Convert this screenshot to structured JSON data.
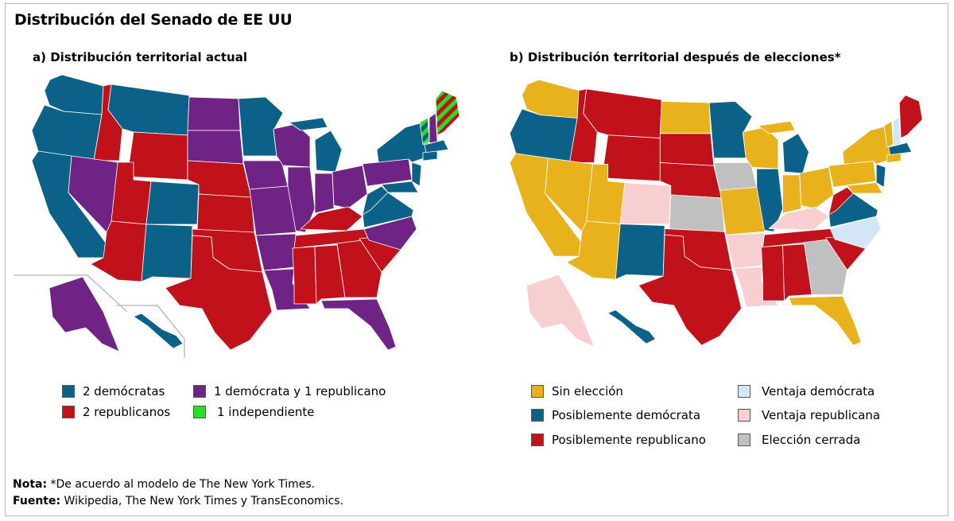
{
  "title": "Distribución del Senado de EE UU",
  "map_a": {
    "subtitle": "a) Distribución territorial actual",
    "legend": [
      {
        "label": "2 demócratas",
        "color": "#0b6187"
      },
      {
        "label": "1 demócrata y 1 republicano",
        "color": "#6e2385"
      },
      {
        "label": "2 republicanos",
        "color": "#c1121c"
      },
      {
        "label": "1 independiente",
        "color": "#27e021"
      }
    ]
  },
  "map_b": {
    "subtitle": "b) Distribución territorial después de elecciones*",
    "legend": [
      {
        "label": "Sin elección",
        "color": "#e8b21c"
      },
      {
        "label": "Ventaja demócrata",
        "color": "#d3e6f5"
      },
      {
        "label": "Posiblemente demócrata",
        "color": "#0b6187"
      },
      {
        "label": "Ventaja republicana",
        "color": "#f7cfd1"
      },
      {
        "label": "Posiblemente republicano",
        "color": "#c1121c"
      },
      {
        "label": "Elección cerrada",
        "color": "#c0c0c0"
      }
    ]
  },
  "note": {
    "nota_label": "Nota:",
    "nota_text": " *De acuerdo al modelo de The New York Times.",
    "fuente_label": "Fuente:",
    "fuente_text": " Wikipedia, The New York Times y TransEconomics."
  },
  "colors": {
    "dem": "#0b6187",
    "rep": "#c1121c",
    "split": "#6e2385",
    "ind": "#27e021",
    "noelection": "#e8b21c",
    "lean_dem": "#d3e6f5",
    "lean_rep": "#f7cfd1",
    "tossup": "#c0c0c0"
  }
}
